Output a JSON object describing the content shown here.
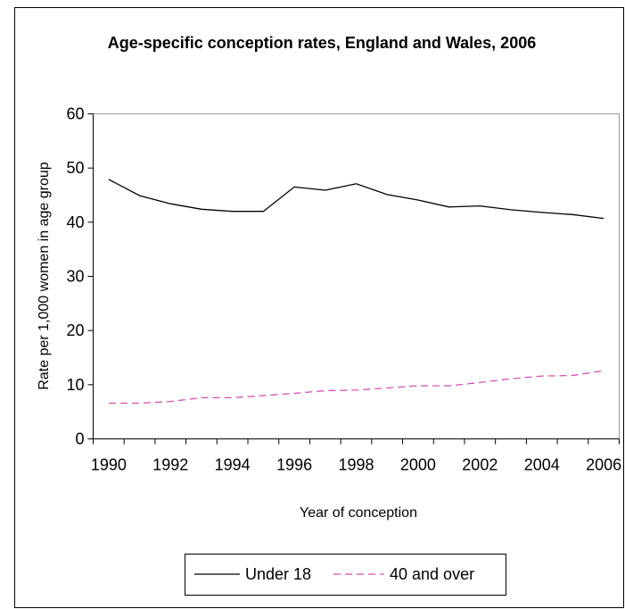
{
  "chart_data": {
    "type": "line",
    "title": "Age-specific conception rates, England and Wales, 2006",
    "xlabel": "Year of conception",
    "ylabel": "Rate per 1,000 women in age group",
    "xlim": [
      1990,
      2006
    ],
    "ylim": [
      0,
      60
    ],
    "yticks": [
      0,
      10,
      20,
      30,
      40,
      50,
      60
    ],
    "xtick_labels": [
      "1990",
      "1992",
      "1994",
      "1996",
      "1998",
      "2000",
      "2002",
      "2004",
      "2006"
    ],
    "ytick_labels": [
      "0",
      "10",
      "20",
      "30",
      "40",
      "50",
      "60"
    ],
    "grid": false,
    "legend_position": "bottom",
    "x": [
      1990,
      1991,
      1992,
      1993,
      1994,
      1995,
      1996,
      1997,
      1998,
      1999,
      2000,
      2001,
      2002,
      2003,
      2004,
      2005,
      2006
    ],
    "series": [
      {
        "name": "Under 18",
        "color": "#000000",
        "style": "solid",
        "values": [
          47.9,
          44.9,
          43.4,
          42.4,
          42.0,
          42.0,
          46.5,
          45.9,
          47.1,
          45.1,
          44.1,
          42.8,
          43.0,
          42.3,
          41.8,
          41.4,
          40.7
        ]
      },
      {
        "name": "40 and over",
        "color": "#d64fb4",
        "style": "dashed",
        "values": [
          6.6,
          6.6,
          6.9,
          7.6,
          7.6,
          8.0,
          8.4,
          8.9,
          9.0,
          9.4,
          9.8,
          9.8,
          10.4,
          11.1,
          11.6,
          11.7,
          12.6
        ]
      }
    ]
  }
}
